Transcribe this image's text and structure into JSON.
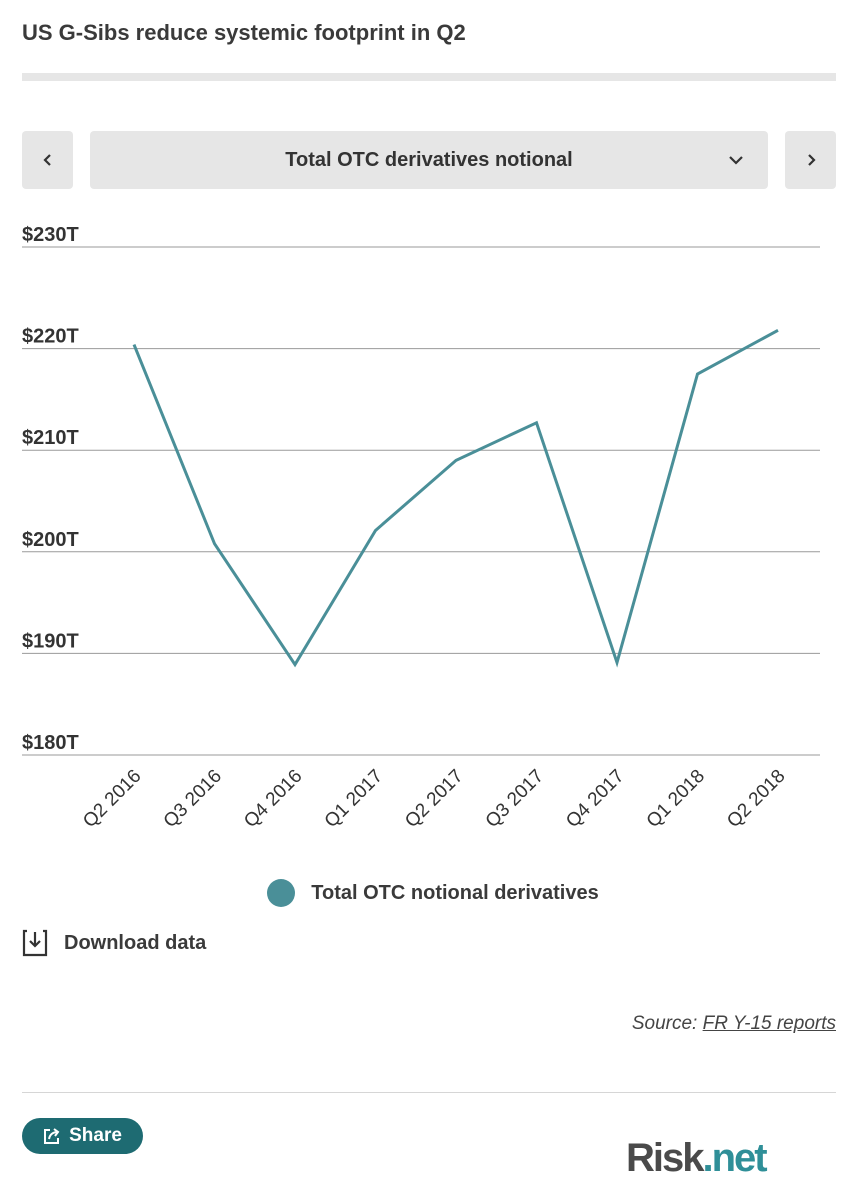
{
  "header": {
    "title": "US G-Sibs reduce systemic footprint in Q2"
  },
  "selector": {
    "label": "Total OTC derivatives notional"
  },
  "icons": {
    "prev": "chevron-left-icon",
    "next": "chevron-right-icon",
    "dropdown": "chevron-down-icon",
    "download": "download-icon",
    "share": "share-icon"
  },
  "colors": {
    "series": "#4a8f98",
    "share_bg": "#1e6b72",
    "logo_dark": "#4a4a4a",
    "logo_accent": "#2f8f98"
  },
  "chart_data": {
    "type": "line",
    "categories": [
      "Q2 2016",
      "Q3 2016",
      "Q4 2016",
      "Q1 2017",
      "Q2 2017",
      "Q3 2017",
      "Q4 2017",
      "Q1 2018",
      "Q2 2018"
    ],
    "series": [
      {
        "name": "Total OTC notional derivatives",
        "values": [
          220.4,
          200.8,
          188.9,
          202.1,
          209.0,
          212.7,
          189.1,
          217.5,
          221.8
        ]
      }
    ],
    "yticks": [
      230,
      220,
      210,
      200,
      190,
      180
    ],
    "ytick_labels": [
      "$230T",
      "$220T",
      "$210T",
      "$200T",
      "$190T",
      "$180T"
    ],
    "ylim": [
      180,
      230
    ],
    "grid": true,
    "legend_position": "bottom-center"
  },
  "legend": {
    "label": "Total OTC notional derivatives"
  },
  "download": {
    "label": "Download data"
  },
  "source": {
    "prefix": "Source: ",
    "link": "FR Y-15 reports"
  },
  "share": {
    "label": "Share"
  },
  "logo": {
    "part1": "Risk",
    "part2": ".net"
  }
}
